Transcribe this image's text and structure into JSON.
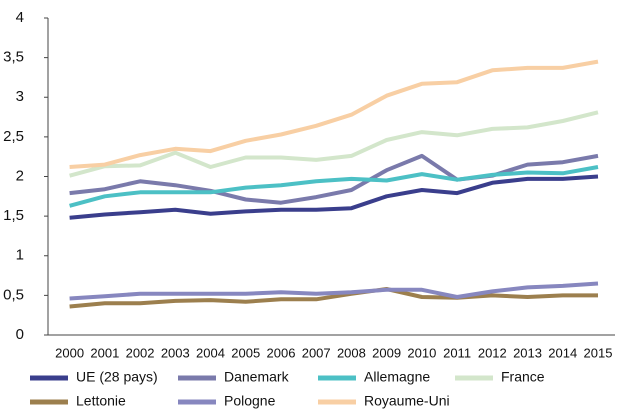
{
  "chart_data": {
    "type": "line",
    "categories": [
      "2000",
      "2001",
      "2002",
      "2003",
      "2004",
      "2005",
      "2006",
      "2007",
      "2008",
      "2009",
      "2010",
      "2011",
      "2012",
      "2013",
      "2014",
      "2015"
    ],
    "ylim": [
      0,
      4
    ],
    "yticks": [
      0,
      {
        "value": 0.5,
        "label": "0,5"
      },
      1,
      {
        "value": 1.5,
        "label": "1,5"
      },
      2,
      {
        "value": 2.5,
        "label": "2,5"
      },
      3,
      {
        "value": 3.5,
        "label": "3,5"
      },
      4
    ],
    "grid": false,
    "series": [
      {
        "name": "UE (28 pays)",
        "color": "#3a3e8c",
        "values": [
          1.48,
          1.52,
          1.55,
          1.58,
          1.53,
          1.56,
          1.58,
          1.58,
          1.6,
          1.75,
          1.83,
          1.79,
          1.92,
          1.97,
          1.97,
          2.0
        ]
      },
      {
        "name": "Danemark",
        "color": "#7a7aab",
        "values": [
          1.79,
          1.84,
          1.94,
          1.89,
          1.82,
          1.71,
          1.67,
          1.74,
          1.83,
          2.08,
          2.26,
          1.96,
          2.01,
          2.15,
          2.18,
          2.26
        ]
      },
      {
        "name": "Allemagne",
        "color": "#4cc0c5",
        "values": [
          1.63,
          1.75,
          1.8,
          1.8,
          1.8,
          1.86,
          1.89,
          1.94,
          1.97,
          1.95,
          2.03,
          1.96,
          2.02,
          2.05,
          2.04,
          2.12
        ]
      },
      {
        "name": "France",
        "color": "#d3e6cb",
        "values": [
          2.01,
          2.13,
          2.14,
          2.3,
          2.12,
          2.24,
          2.24,
          2.21,
          2.26,
          2.46,
          2.56,
          2.52,
          2.6,
          2.62,
          2.7,
          2.81
        ]
      },
      {
        "name": "Lettonie",
        "color": "#9c7f4e",
        "values": [
          0.36,
          0.4,
          0.4,
          0.43,
          0.44,
          0.42,
          0.45,
          0.45,
          0.52,
          0.58,
          0.48,
          0.47,
          0.5,
          0.48,
          0.5,
          0.5
        ]
      },
      {
        "name": "Pologne",
        "color": "#8787bf",
        "values": [
          0.46,
          0.49,
          0.52,
          0.52,
          0.52,
          0.52,
          0.54,
          0.52,
          0.54,
          0.57,
          0.57,
          0.48,
          0.55,
          0.6,
          0.62,
          0.65
        ]
      },
      {
        "name": "Royaume-Uni",
        "color": "#f8cfa4",
        "values": [
          2.12,
          2.15,
          2.27,
          2.35,
          2.32,
          2.45,
          2.53,
          2.64,
          2.78,
          3.02,
          3.17,
          3.19,
          3.34,
          3.37,
          3.37,
          3.45
        ]
      }
    ]
  }
}
